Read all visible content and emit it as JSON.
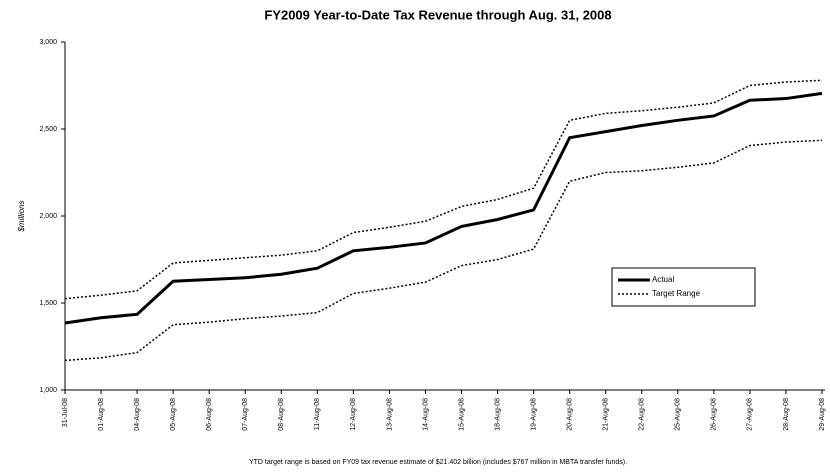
{
  "chart_data": {
    "type": "line",
    "title": "FY2009 Year-to-Date Tax Revenue through Aug. 31, 2008",
    "y_label": "$millions",
    "footnote": "YTD target range is based on FY09 tax revenue estimate of $21.402 billion (includes $767 million in MBTA transfer funds).",
    "categories": [
      "31-Jul-08",
      "01-Aug-08",
      "04-Aug-08",
      "05-Aug-08",
      "06-Aug-08",
      "07-Aug-08",
      "08-Aug-08",
      "11-Aug-08",
      "12-Aug-08",
      "13-Aug-08",
      "14-Aug-08",
      "15-Aug-08",
      "18-Aug-08",
      "19-Aug-08",
      "20-Aug-08",
      "21-Aug-08",
      "22-Aug-08",
      "25-Aug-08",
      "26-Aug-08",
      "27-Aug-08",
      "28-Aug-08",
      "29-Aug-08"
    ],
    "series": [
      {
        "name": "Actual",
        "color": "#000000",
        "style": "solid",
        "values": [
          1385,
          1415,
          1435,
          1625,
          1635,
          1645,
          1665,
          1700,
          1800,
          1820,
          1845,
          1940,
          1980,
          2035,
          2450,
          2485,
          2520,
          2550,
          2575,
          2665,
          2675,
          2705
        ]
      },
      {
        "name": "Target Range",
        "color": "#000000",
        "style": "dotted",
        "high": [
          1525,
          1545,
          1570,
          1730,
          1745,
          1760,
          1775,
          1800,
          1905,
          1935,
          1970,
          2055,
          2095,
          2160,
          2550,
          2590,
          2605,
          2625,
          2650,
          2750,
          2770,
          2780
        ],
        "low": [
          1170,
          1185,
          1215,
          1375,
          1390,
          1410,
          1425,
          1445,
          1555,
          1585,
          1620,
          1715,
          1750,
          1810,
          2200,
          2250,
          2260,
          2280,
          2305,
          2405,
          2425,
          2435
        ]
      }
    ],
    "ylim": [
      1000,
      3000
    ],
    "yticks": [
      {
        "value": 1000,
        "label": "1,000"
      },
      {
        "value": 1500,
        "label": "1,500"
      },
      {
        "value": 2000,
        "label": "2,000"
      },
      {
        "value": 2500,
        "label": "2,500"
      },
      {
        "value": 3000,
        "label": "3,000"
      }
    ],
    "grid": false,
    "legend": "right"
  }
}
